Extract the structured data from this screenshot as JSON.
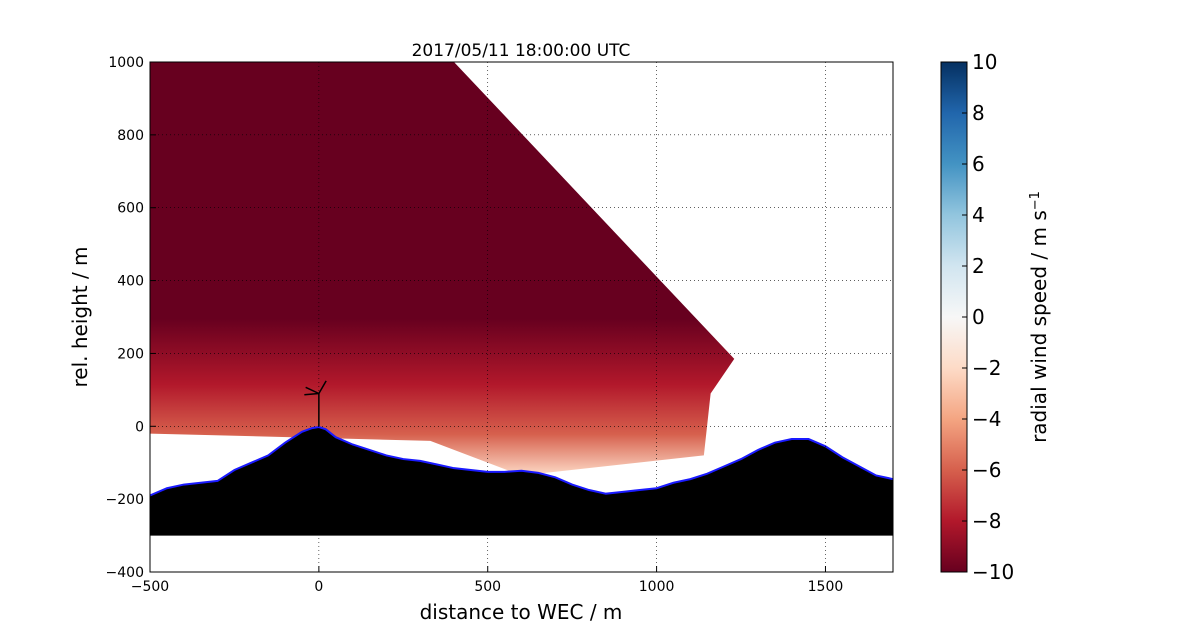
{
  "chart_data": {
    "type": "heatmap",
    "title": "2017/05/11 18:00:00 UTC",
    "xlabel": "distance to WEC / m",
    "ylabel": "rel. height / m",
    "xlim": [
      -500,
      1700
    ],
    "ylim": [
      -400,
      1000
    ],
    "x_ticks": [
      -500,
      0,
      500,
      1000,
      1500
    ],
    "x_tick_labels": [
      "−500",
      "0",
      "500",
      "1000",
      "1500"
    ],
    "y_ticks": [
      -400,
      -200,
      0,
      200,
      400,
      600,
      800,
      1000
    ],
    "y_tick_labels": [
      "−400",
      "−200",
      "0",
      "200",
      "400",
      "600",
      "800",
      "1000"
    ],
    "grid": true,
    "colormap": "RdBu",
    "colorbar": {
      "label": "radial wind speed / m s",
      "label_superscript": "−1",
      "vmin": -10,
      "vmax": 10,
      "ticks": [
        -10,
        -8,
        -6,
        -4,
        -2,
        0,
        2,
        4,
        6,
        8,
        10
      ],
      "tick_labels": [
        "−10",
        "−8",
        "−6",
        "−4",
        "−2",
        "0",
        "2",
        "4",
        "6",
        "8",
        "10"
      ],
      "colors": [
        "#67001f",
        "#b2182b",
        "#d6604d",
        "#f4a582",
        "#fddbc7",
        "#f7f7f7",
        "#d1e5f0",
        "#92c5de",
        "#4393c3",
        "#2166ac",
        "#053061"
      ]
    },
    "scan_sector": {
      "description_free": true,
      "polygon": [
        [
          -500,
          1000
        ],
        [
          400,
          1000
        ],
        [
          1230,
          185
        ],
        [
          1160,
          90
        ],
        [
          1140,
          -80
        ],
        [
          600,
          -135
        ],
        [
          330,
          -40
        ],
        [
          -500,
          -20
        ]
      ],
      "dominant_value": -10,
      "near_surface_value": -2
    },
    "terrain": {
      "color": "#000000",
      "outline_color": "#1a1aff",
      "bottom": -300,
      "profile": [
        [
          -500,
          -190
        ],
        [
          -450,
          -170
        ],
        [
          -400,
          -160
        ],
        [
          -300,
          -150
        ],
        [
          -250,
          -120
        ],
        [
          -200,
          -100
        ],
        [
          -150,
          -80
        ],
        [
          -100,
          -45
        ],
        [
          -50,
          -15
        ],
        [
          -20,
          -5
        ],
        [
          0,
          -2
        ],
        [
          20,
          -8
        ],
        [
          50,
          -30
        ],
        [
          100,
          -50
        ],
        [
          150,
          -65
        ],
        [
          200,
          -80
        ],
        [
          250,
          -90
        ],
        [
          300,
          -95
        ],
        [
          350,
          -105
        ],
        [
          400,
          -115
        ],
        [
          450,
          -120
        ],
        [
          500,
          -125
        ],
        [
          550,
          -125
        ],
        [
          600,
          -122
        ],
        [
          650,
          -128
        ],
        [
          700,
          -140
        ],
        [
          750,
          -160
        ],
        [
          800,
          -175
        ],
        [
          850,
          -185
        ],
        [
          900,
          -180
        ],
        [
          950,
          -175
        ],
        [
          1000,
          -170
        ],
        [
          1050,
          -155
        ],
        [
          1100,
          -145
        ],
        [
          1150,
          -130
        ],
        [
          1200,
          -110
        ],
        [
          1250,
          -90
        ],
        [
          1300,
          -65
        ],
        [
          1350,
          -45
        ],
        [
          1400,
          -35
        ],
        [
          1450,
          -35
        ],
        [
          1500,
          -55
        ],
        [
          1550,
          -85
        ],
        [
          1600,
          -110
        ],
        [
          1650,
          -135
        ],
        [
          1700,
          -145
        ]
      ]
    },
    "turbine": {
      "x": 0,
      "hub_height": 90,
      "rotor_radius": 40
    }
  }
}
